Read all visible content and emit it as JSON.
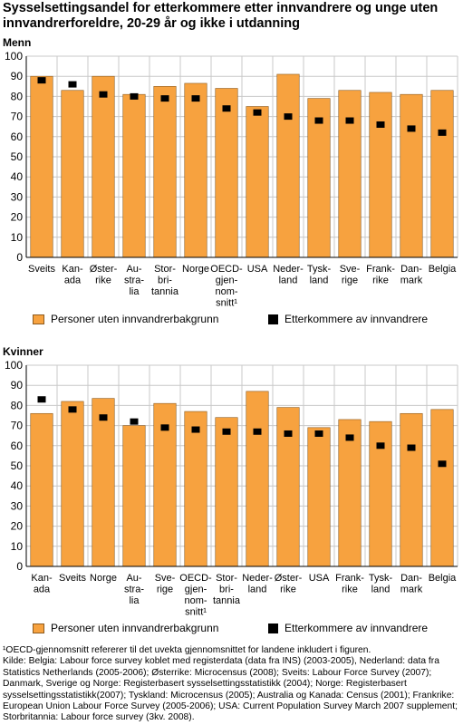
{
  "title": "Sysselsettingsandel for etterkommere etter innvandrere og unge uten innvandrerforeldre, 20-29 år og ikke i utdanning",
  "legend": {
    "bar_label": "Personer uten innvandrerbakgrunn",
    "marker_label": "Etterkommere av innvandrere"
  },
  "colors": {
    "bar": "#f7a23f",
    "bar_edge": "#8c5a1e",
    "marker": "#000000",
    "grid": "#c8c8c8",
    "axis": "#000000"
  },
  "footnotes": [
    "¹OECD-gjennomsnitt refererer til det uvekta gjennomsnittet for landene inkludert i figuren.",
    "Kilde: Belgia: Labour force survey koblet med registerdata (data fra INS) (2003-2005), Nederland: data fra Statistics Netherlands (2005-2006); Østerrike: Microcensus (2008); Sveits: Labour Force Survey (2007); Danmark, Sverige og Norge: Registerbasert sysselsettingsstatistikk (2004); Norge: Registerbasert sysselsettingsstatistikk(2007); Tyskland: Microcensus (2005); Australia og Kanada: Census (2001); Frankrike: European Union Labour Force Survey (2005-2006); USA: Current Population Survey March 2007 supplement; Storbritannia: Labour force survey (3kv. 2008)."
  ],
  "chart_data": [
    {
      "type": "bar",
      "title": "Menn",
      "ylim": [
        0,
        100
      ],
      "yticks": [
        0,
        10,
        20,
        30,
        40,
        50,
        60,
        70,
        80,
        90,
        100
      ],
      "grid": true,
      "legend_position": "bottom",
      "categories": [
        "Sveits",
        "Kanada",
        "Østerrike",
        "Australia",
        "Storbritannia",
        "Norge",
        "OECD-gjennomsnitt¹",
        "USA",
        "Nederland",
        "Tyskland",
        "Sverige",
        "Frankrike",
        "Danmark",
        "Belgia"
      ],
      "category_labels": [
        [
          "Sveits"
        ],
        [
          "Kan-",
          "ada"
        ],
        [
          "Øster-",
          "rike"
        ],
        [
          "Au-",
          "stra-",
          "lia"
        ],
        [
          "Stor-",
          "bri-",
          "tannia"
        ],
        [
          "Norge"
        ],
        [
          "OECD-",
          "gjen-",
          "nom-",
          "snitt¹"
        ],
        [
          "USA"
        ],
        [
          "Neder-",
          "land"
        ],
        [
          "Tysk-",
          "land"
        ],
        [
          "Sve-",
          "rige"
        ],
        [
          "Frank-",
          "rike"
        ],
        [
          "Dan-",
          "mark"
        ],
        [
          "Belgia"
        ]
      ],
      "series": [
        {
          "name": "Personer uten innvandrerbakgrunn",
          "kind": "bar",
          "values": [
            90,
            83,
            90,
            81,
            85,
            86.5,
            84,
            75,
            91,
            79,
            83,
            82,
            81,
            83
          ]
        },
        {
          "name": "Etterkommere av innvandrere",
          "kind": "marker",
          "values": [
            88,
            86,
            81,
            80,
            79,
            79,
            74,
            72,
            70,
            68,
            68,
            66,
            64,
            62
          ]
        }
      ]
    },
    {
      "type": "bar",
      "title": "Kvinner",
      "ylim": [
        0,
        100
      ],
      "yticks": [
        0,
        10,
        20,
        30,
        40,
        50,
        60,
        70,
        80,
        90,
        100
      ],
      "grid": true,
      "legend_position": "bottom",
      "categories": [
        "Kanada",
        "Sveits",
        "Norge",
        "Australia",
        "Sverige",
        "OECD-gjennomsnitt¹",
        "Storbritannia",
        "Nederland",
        "Østerrike",
        "USA",
        "Frankrike",
        "Tyskland",
        "Danmark",
        "Belgia"
      ],
      "category_labels": [
        [
          "Kan-",
          "ada"
        ],
        [
          "Sveits"
        ],
        [
          "Norge"
        ],
        [
          "Au-",
          "stra-",
          "lia"
        ],
        [
          "Sve-",
          "rige"
        ],
        [
          "OECD-",
          "gjen-",
          "nom-",
          "snitt¹"
        ],
        [
          "Stor-",
          "bri-",
          "tannia"
        ],
        [
          "Neder-",
          "land"
        ],
        [
          "Øster-",
          "rike"
        ],
        [
          "USA"
        ],
        [
          "Frank-",
          "rike"
        ],
        [
          "Tysk-",
          "land"
        ],
        [
          "Dan-",
          "mark"
        ],
        [
          "Belgia"
        ]
      ],
      "series": [
        {
          "name": "Personer uten innvandrerbakgrunn",
          "kind": "bar",
          "values": [
            76,
            82,
            83.5,
            70,
            81,
            77,
            74,
            87,
            79,
            69,
            73,
            72,
            76,
            78
          ]
        },
        {
          "name": "Etterkommere av innvandrere",
          "kind": "marker",
          "values": [
            83,
            78,
            74,
            72,
            69,
            68,
            67,
            67,
            66,
            66,
            64,
            60,
            59,
            51
          ]
        }
      ]
    }
  ]
}
